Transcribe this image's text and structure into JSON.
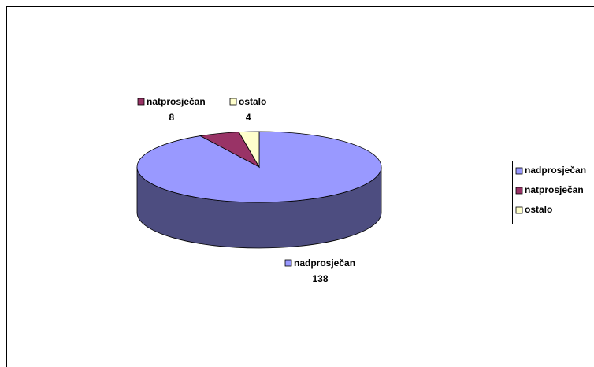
{
  "chart_data": {
    "type": "pie",
    "categories": [
      "nadprosječan",
      "natprosječan",
      "ostalo"
    ],
    "values": [
      138,
      8,
      4
    ],
    "colors": [
      "#9999ff",
      "#993366",
      "#ffffcc"
    ],
    "legend": "right"
  }
}
